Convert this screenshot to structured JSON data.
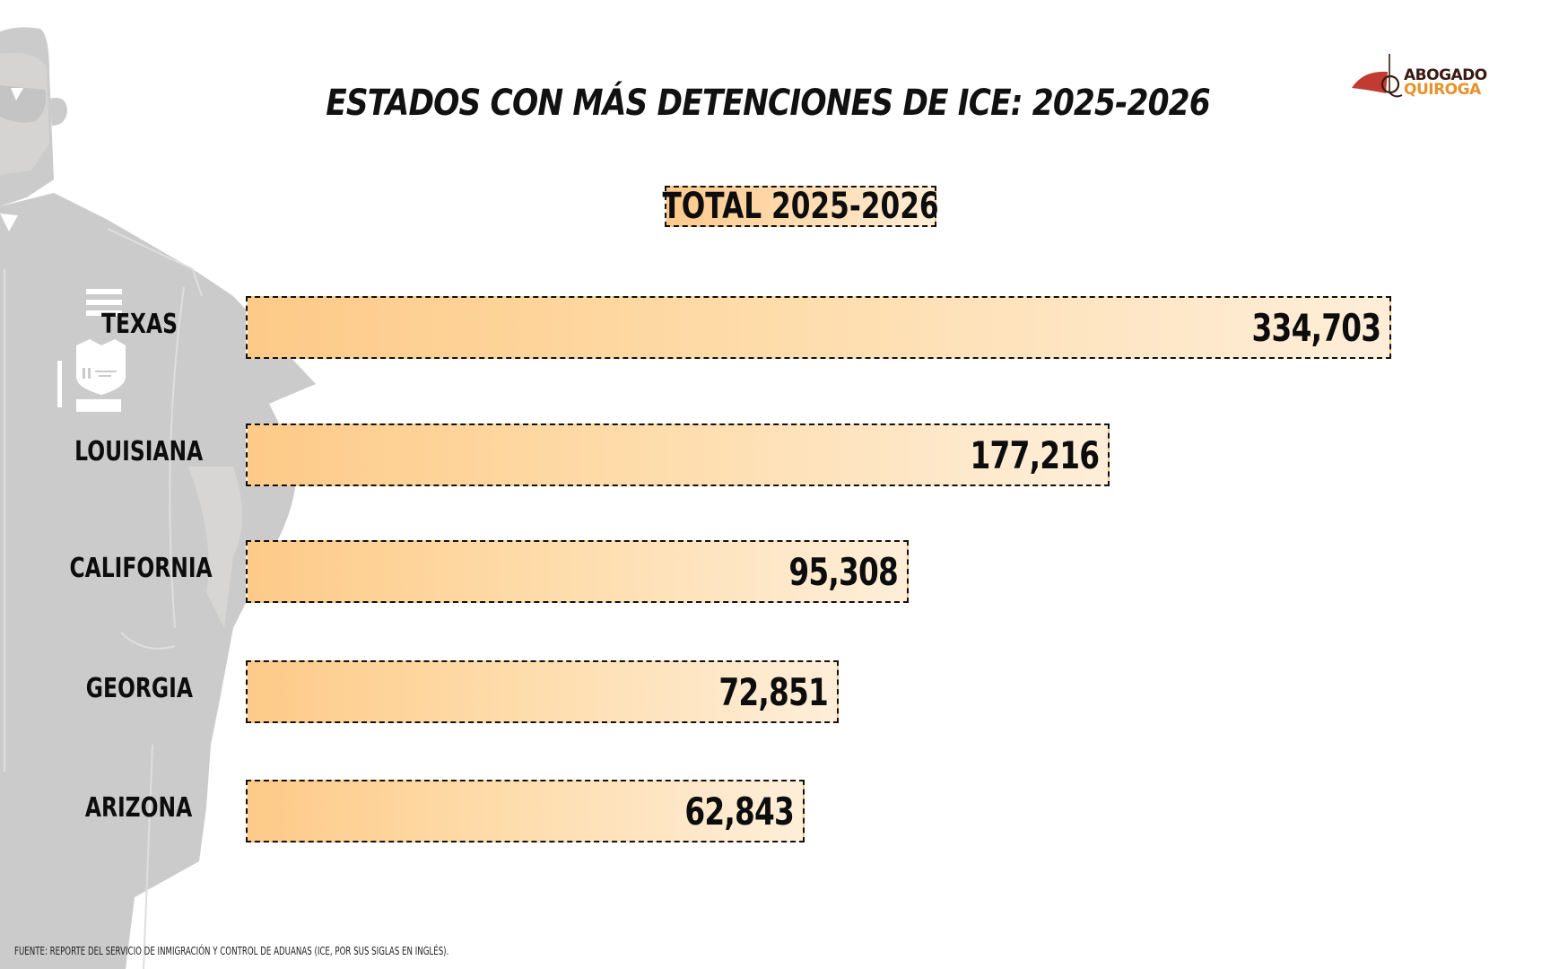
{
  "header": {
    "title": "ESTADOS CON MÁS DETENCIONES DE ICE: 2025-2026",
    "subtitle": "TOTAL 2025-2026"
  },
  "logo": {
    "line1": "ABOGADO",
    "line2": "QUIROGA",
    "colors": {
      "dark": "#3a1a12",
      "orange": "#e8922b",
      "red": "#c23b32"
    }
  },
  "footer": {
    "source": "FUENTE: REPORTE DEL SERVICIO DE INMIGRACIÓN Y CONTROL DE ADUANAS (ICE, POR SUS SIGLAS EN INGLÉS)."
  },
  "colors": {
    "bar_start": "#fdca88",
    "bar_end": "#feeed9",
    "figure_gray": "#cbcbcb"
  },
  "chart_data": {
    "type": "bar",
    "orientation": "horizontal",
    "title": "ESTADOS CON MÁS DETENCIONES DE ICE: 2025-2026",
    "subtitle": "TOTAL 2025-2026",
    "categories": [
      "TEXAS",
      "LOUISIANA",
      "CALIFORNIA",
      "GEORGIA",
      "ARIZONA"
    ],
    "values": [
      334703,
      177216,
      95308,
      72851,
      62843
    ],
    "value_labels": [
      "334,703",
      "177,216",
      "95,308",
      "72,851",
      "62,843"
    ],
    "xlabel": "",
    "ylabel": "",
    "grid": false,
    "legend": "none",
    "source": "FUENTE: REPORTE DEL SERVICIO DE INMIGRACIÓN Y CONTROL DE ADUANAS (ICE, POR SUS SIGLAS EN INGLÉS)."
  }
}
